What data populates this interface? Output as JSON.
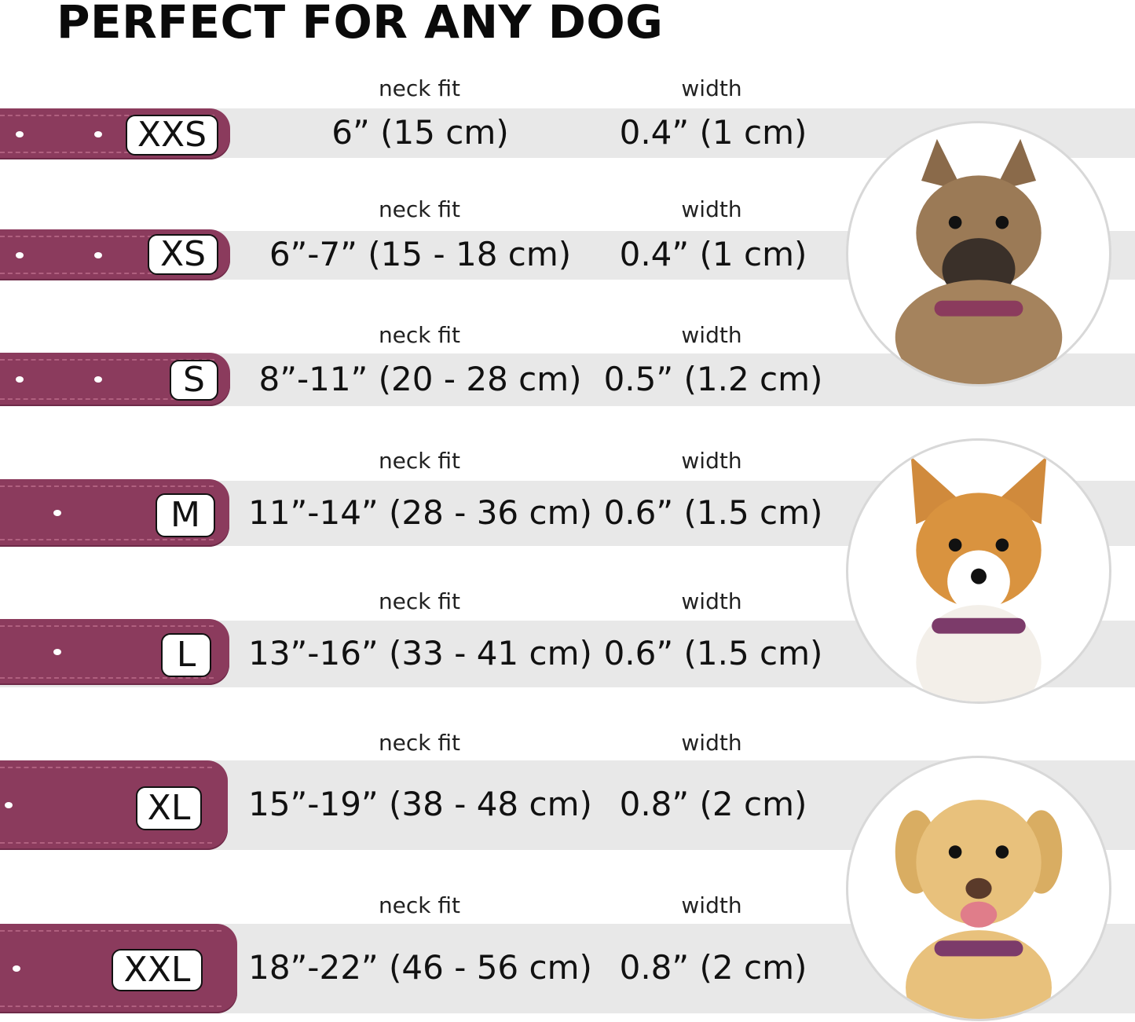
{
  "title": "PERFECT FOR ANY DOG",
  "neck_fit_label": "neck fit",
  "width_label": "width",
  "colors": {
    "collar": "#8b3b5d",
    "band": "#e8e8e8"
  },
  "sizes": [
    {
      "size": "XXS",
      "neck_fit": "6” (15 cm)",
      "width": "0.4” (1 cm)"
    },
    {
      "size": "XS",
      "neck_fit": "6”-7” (15 - 18 cm)",
      "width": "0.4” (1 cm)"
    },
    {
      "size": "S",
      "neck_fit": "8”-11” (20 - 28 cm)",
      "width": "0.5” (1.2 cm)"
    },
    {
      "size": "M",
      "neck_fit": "11”-14” (28 - 36 cm)",
      "width": "0.6” (1.5 cm)"
    },
    {
      "size": "L",
      "neck_fit": "13”-16” (33 - 41 cm)",
      "width": "0.6” (1.5 cm)"
    },
    {
      "size": "XL",
      "neck_fit": "15”-19” (38 - 48 cm)",
      "width": "0.8” (2 cm)"
    },
    {
      "size": "XXL",
      "neck_fit": "18”-22” (46 - 56 cm)",
      "width": "0.8” (2 cm)"
    }
  ],
  "dog_images": [
    "terrier-photo",
    "corgi-photo",
    "labrador-photo"
  ]
}
